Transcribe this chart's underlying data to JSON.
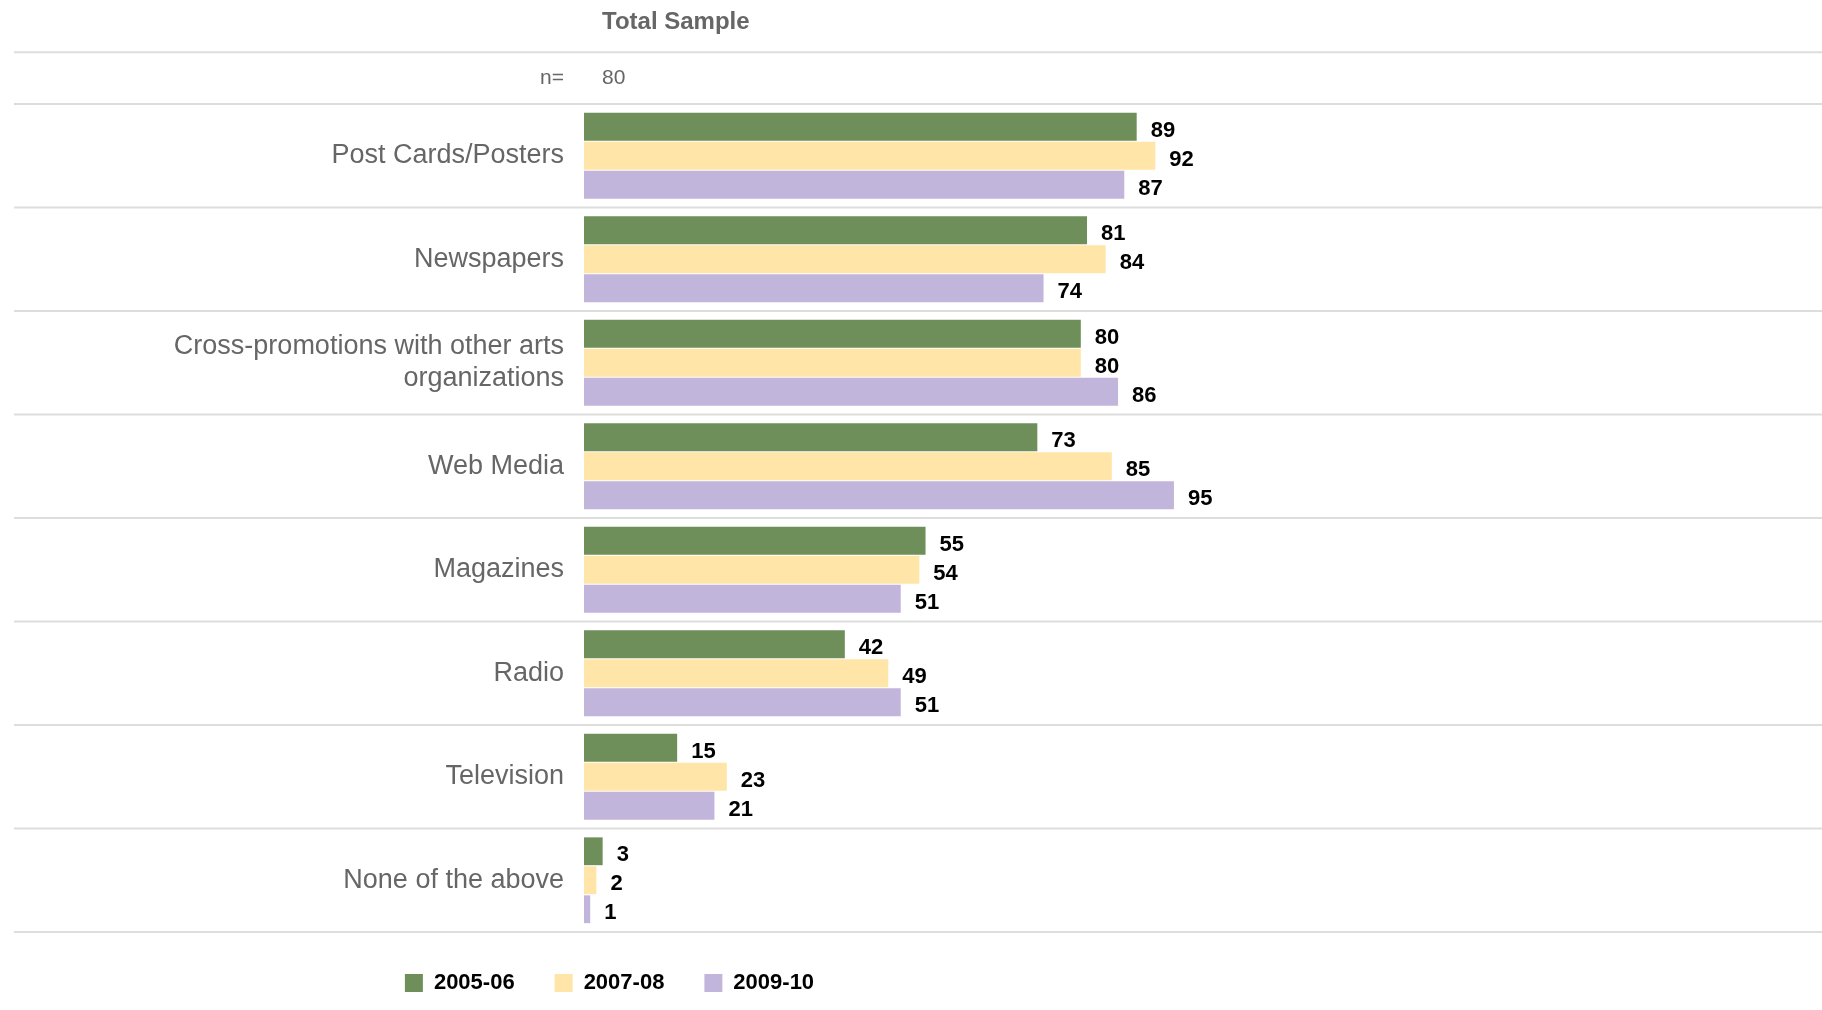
{
  "chart_data": {
    "type": "bar",
    "orientation": "horizontal",
    "title": "Total Sample",
    "annotations": [
      "n=",
      "80"
    ],
    "categories": [
      "Post Cards/Posters",
      "Newspapers",
      "Cross-promotions with other arts organizations",
      "Web Media",
      "Magazines",
      "Radio",
      "Television",
      "None of the above"
    ],
    "series": [
      {
        "name": "2005-06",
        "color": "#6e8f5a",
        "values": [
          89,
          81,
          80,
          73,
          55,
          42,
          15,
          3
        ]
      },
      {
        "name": "2007-08",
        "color": "#ffe6a8",
        "values": [
          92,
          84,
          80,
          85,
          54,
          49,
          23,
          2
        ]
      },
      {
        "name": "2009-10",
        "color": "#c2b5dc",
        "values": [
          87,
          74,
          86,
          95,
          51,
          51,
          21,
          1
        ]
      }
    ],
    "data_labels": true,
    "legend": "bottom"
  }
}
